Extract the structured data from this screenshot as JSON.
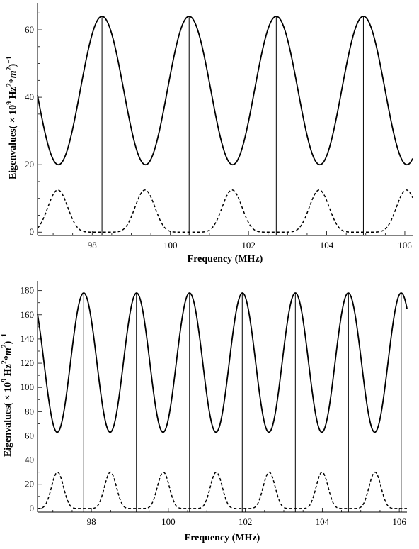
{
  "chart_data": [
    {
      "type": "line",
      "xlabel": "Frequency (MHz)",
      "ylabel_parts": [
        "Eigenvalues( × 10",
        "9",
        " Hz",
        "2",
        "*",
        "m",
        "2",
        ")",
        "−1"
      ],
      "xlim": [
        96.6,
        106.2
      ],
      "ylim": [
        -1,
        68
      ],
      "xticks": [
        98,
        100,
        102,
        104,
        106
      ],
      "xtick_labels": [
        "98",
        "100",
        "102",
        "104",
        "106"
      ],
      "yticks": [
        0,
        20,
        40,
        60
      ],
      "ytick_labels": [
        "0",
        "20",
        "40",
        "60"
      ],
      "series": [
        {
          "style": "solid",
          "shape": "cosine",
          "min": 20,
          "max": 64,
          "period": 2.23,
          "peak_at": 98.25
        },
        {
          "style": "dashed",
          "shape": "peaked",
          "min": 0,
          "max": 12.5,
          "period": 2.23,
          "peak_at": 97.12
        }
      ],
      "vertical_lines": [
        98.25,
        100.48,
        102.71,
        104.94
      ],
      "grid": false
    },
    {
      "type": "line",
      "xlabel": "Frequency (MHz)",
      "ylabel_parts": [
        "Eigenvalues( × 10",
        "9",
        " Hz",
        "2",
        "*",
        "m",
        "2",
        ")",
        "−1"
      ],
      "xlim": [
        96.6,
        106.2
      ],
      "ylim": [
        -3,
        188
      ],
      "xticks": [
        98,
        100,
        102,
        104,
        106
      ],
      "xtick_labels": [
        "98",
        "100",
        "102",
        "104",
        "106"
      ],
      "yticks": [
        0,
        20,
        40,
        60,
        80,
        100,
        120,
        140,
        160,
        180
      ],
      "ytick_labels": [
        "0",
        "20",
        "40",
        "60",
        "80",
        "100",
        "120",
        "140",
        "160",
        "180"
      ],
      "series": [
        {
          "style": "solid",
          "shape": "cosine",
          "min": 63,
          "max": 178,
          "period": 1.375,
          "peak_at": 97.8
        },
        {
          "style": "dashed",
          "shape": "peaked",
          "min": 0,
          "max": 30,
          "period": 1.375,
          "peak_at": 97.12
        }
      ],
      "vertical_lines": [
        97.8,
        99.17,
        100.55,
        101.92,
        103.3,
        104.68,
        106.05
      ],
      "grid": false
    }
  ]
}
